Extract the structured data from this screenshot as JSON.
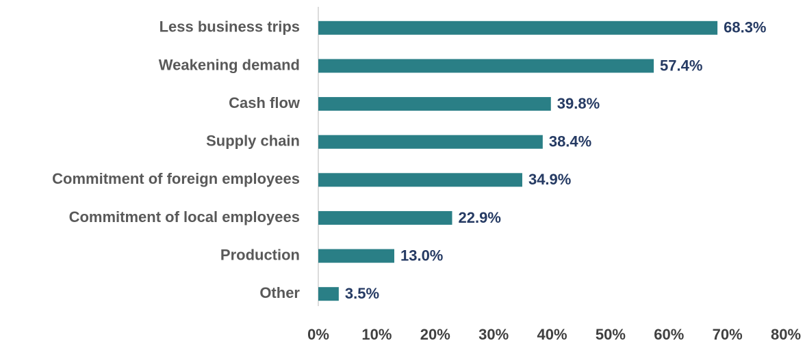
{
  "chart_data": {
    "type": "bar",
    "orientation": "horizontal",
    "categories": [
      "Less business trips",
      "Weakening demand",
      "Cash flow",
      "Supply chain",
      "Commitment of foreign employees",
      "Commitment of local employees",
      "Production",
      "Other"
    ],
    "values": [
      68.3,
      57.4,
      39.8,
      38.4,
      34.9,
      22.9,
      13.0,
      3.5
    ],
    "value_labels": [
      "68.3%",
      "57.4%",
      "39.8%",
      "38.4%",
      "34.9%",
      "22.9%",
      "13.0%",
      "3.5%"
    ],
    "color": "#2a7f86",
    "xlim": [
      0,
      80
    ],
    "xticks": [
      {
        "value": 0,
        "label": "0%"
      },
      {
        "value": 10,
        "label": "10%"
      },
      {
        "value": 20,
        "label": "20%"
      },
      {
        "value": 30,
        "label": "30%"
      },
      {
        "value": 40,
        "label": "40%"
      },
      {
        "value": 50,
        "label": "50%"
      },
      {
        "value": 60,
        "label": "60%"
      },
      {
        "value": 70,
        "label": "70%"
      },
      {
        "value": 80,
        "label": "80%"
      }
    ],
    "grid": false
  }
}
